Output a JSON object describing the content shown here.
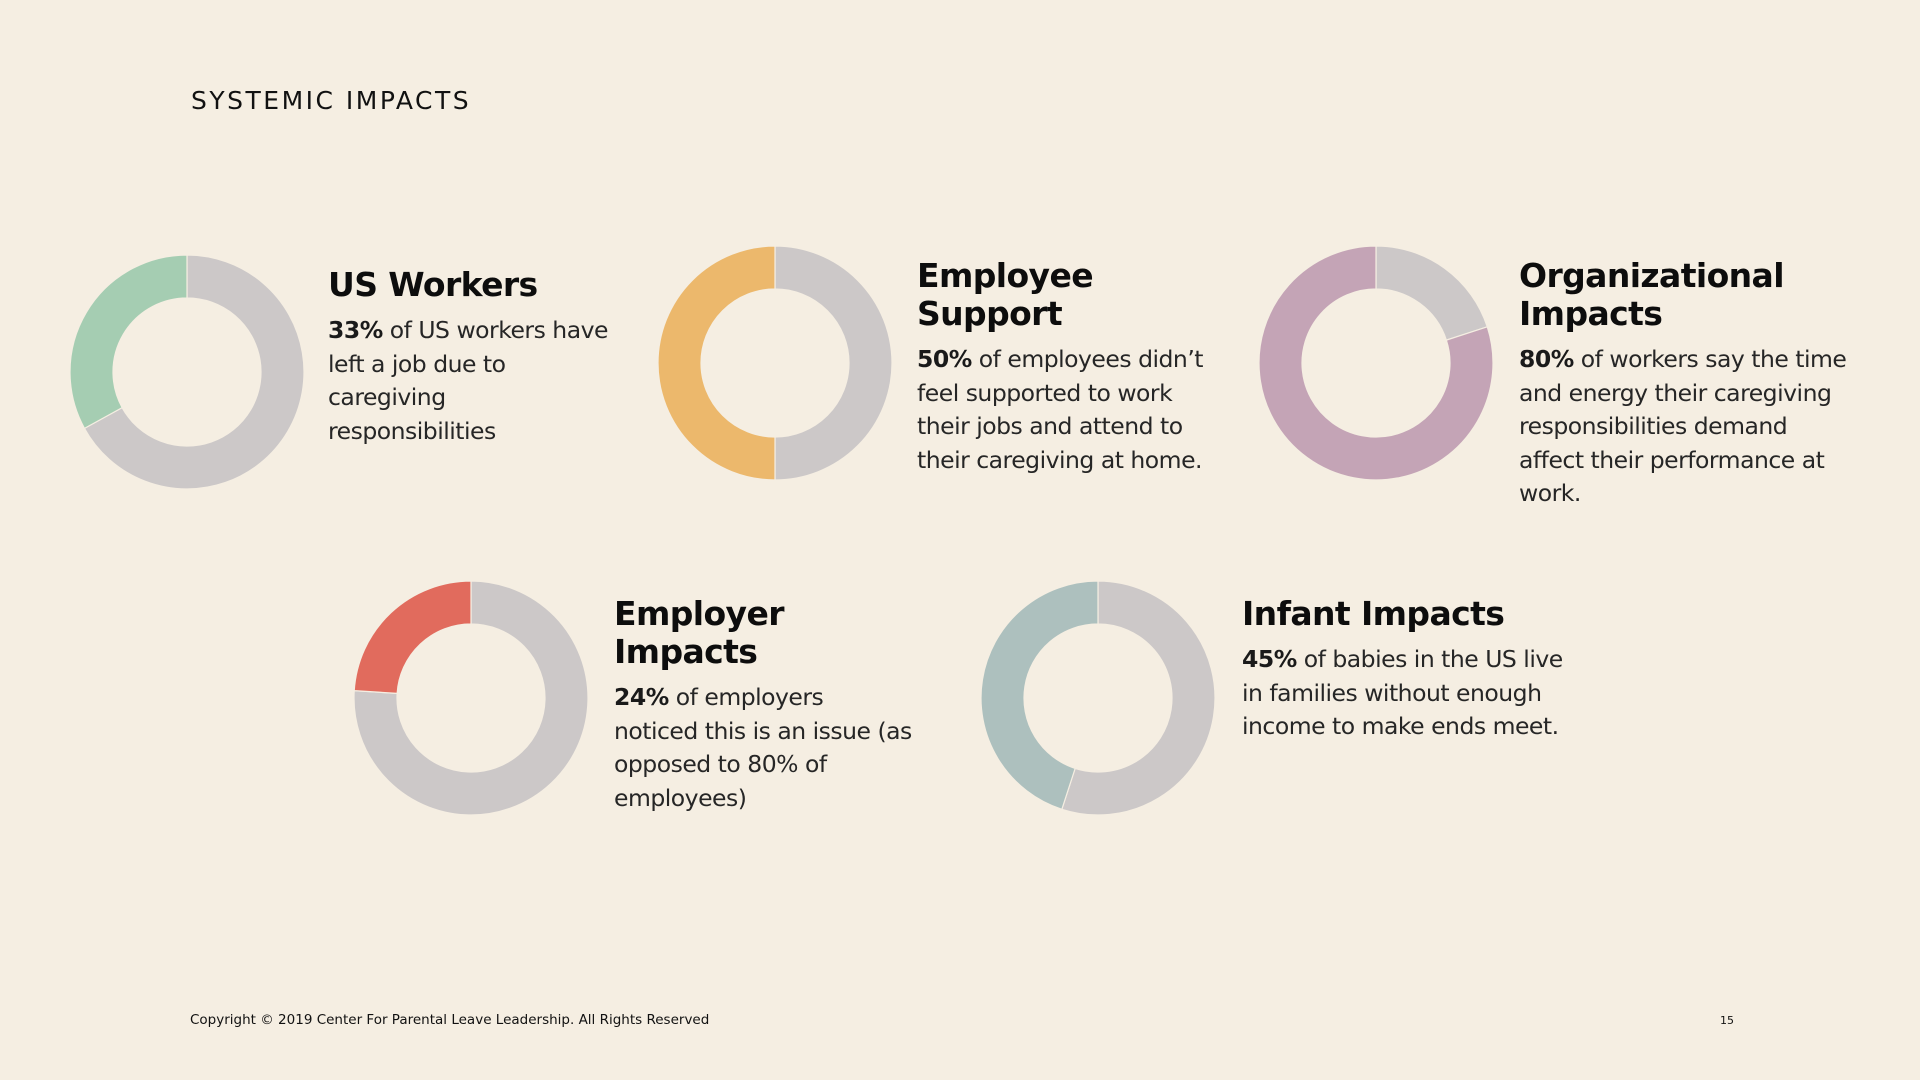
{
  "page": {
    "title": "SYSTEMIC IMPACTS",
    "copyright": "Copyright © 2019 Center For Parental Leave Leadership. All Rights Reserved",
    "page_number": "15"
  },
  "colors": {
    "background": "#f5eee2",
    "remainder": "#ccc8c8",
    "green": "#a5cdb2",
    "orange": "#ecb86c",
    "purple": "#c4a4b6",
    "red": "#e16b5d",
    "teal": "#adc0be"
  },
  "chart_data": [
    {
      "type": "pie",
      "title": "US Workers",
      "percent_label": "33%",
      "description": "of US workers have left a job due to caregiving responsibilities",
      "values": [
        33,
        67
      ],
      "color": "#a5cdb2"
    },
    {
      "type": "pie",
      "title": "Employee Support",
      "percent_label": "50%",
      "description": "of employees didn’t feel supported to work their jobs and attend to their caregiving at home.",
      "values": [
        50,
        50
      ],
      "color": "#ecb86c"
    },
    {
      "type": "pie",
      "title": "Organizational Impacts",
      "percent_label": "80%",
      "description": "of workers say the time and energy their caregiving responsibilities demand affect their performance at work.",
      "values": [
        80,
        20
      ],
      "color": "#c4a4b6",
      "direction": "clockwise"
    },
    {
      "type": "pie",
      "title": "Employer Impacts",
      "percent_label": "24%",
      "description": "of employers noticed this is an issue (as opposed to 80% of employees)",
      "values": [
        24,
        76
      ],
      "color": "#e16b5d"
    },
    {
      "type": "pie",
      "title": "Infant Impacts",
      "percent_label": "45%",
      "description": "of babies in the US live in families without enough income to make ends meet.",
      "values": [
        45,
        55
      ],
      "color": "#adc0be"
    }
  ]
}
